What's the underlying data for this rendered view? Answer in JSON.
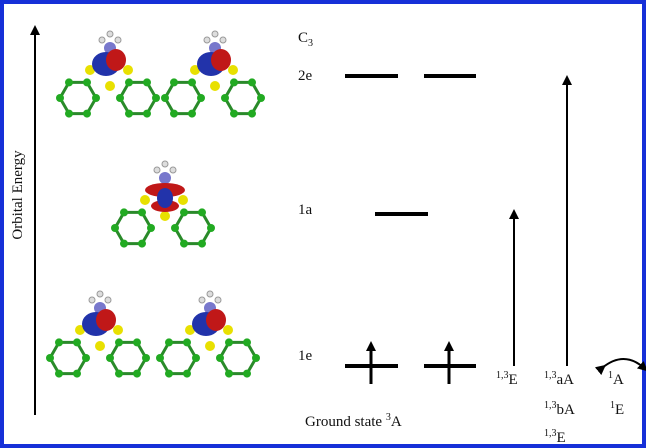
{
  "axis_label": "Orbital Energy",
  "point_group": {
    "base": "C",
    "sub": "3"
  },
  "levels": [
    {
      "label": "2e"
    },
    {
      "label": "1a"
    },
    {
      "label": "1e"
    }
  ],
  "ground_state": {
    "text": "Ground state ",
    "sup": "3",
    "base": "A"
  },
  "transitions": [
    {
      "sup": "1,3",
      "base": "E"
    },
    {
      "sup": "1,3",
      "base": "aA"
    },
    {
      "sup": "1,3",
      "base": "bA"
    },
    {
      "sup": "1,3",
      "base": "E"
    },
    {
      "sup": "1",
      "base": "A"
    },
    {
      "sup": "1",
      "base": "E"
    }
  ]
}
